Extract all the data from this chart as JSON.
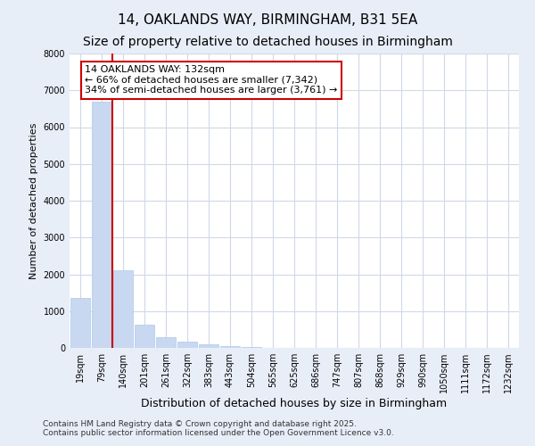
{
  "title": "14, OAKLANDS WAY, BIRMINGHAM, B31 5EA",
  "subtitle": "Size of property relative to detached houses in Birmingham",
  "xlabel": "Distribution of detached houses by size in Birmingham",
  "ylabel": "Number of detached properties",
  "categories": [
    "19sqm",
    "79sqm",
    "140sqm",
    "201sqm",
    "261sqm",
    "322sqm",
    "383sqm",
    "443sqm",
    "504sqm",
    "565sqm",
    "625sqm",
    "686sqm",
    "747sqm",
    "807sqm",
    "868sqm",
    "929sqm",
    "990sqm",
    "1050sqm",
    "1111sqm",
    "1172sqm",
    "1232sqm"
  ],
  "values": [
    1350,
    6700,
    2100,
    630,
    300,
    170,
    100,
    50,
    20,
    5,
    2,
    1,
    0,
    0,
    0,
    0,
    0,
    0,
    0,
    0,
    0
  ],
  "bar_color": "#c8d8f0",
  "bar_edge_color": "#b0c8e8",
  "vline_color": "#cc0000",
  "vline_index": 2,
  "ylim": [
    0,
    8000
  ],
  "yticks": [
    0,
    1000,
    2000,
    3000,
    4000,
    5000,
    6000,
    7000,
    8000
  ],
  "annotation_text": "14 OAKLANDS WAY: 132sqm\n← 66% of detached houses are smaller (7,342)\n34% of semi-detached houses are larger (3,761) →",
  "annotation_box_facecolor": "white",
  "annotation_box_edgecolor": "#cc0000",
  "footnote1": "Contains HM Land Registry data © Crown copyright and database right 2025.",
  "footnote2": "Contains public sector information licensed under the Open Government Licence v3.0.",
  "plot_bg_color": "#ffffff",
  "fig_bg_color": "#e8eef8",
  "grid_color": "#d0d8e8",
  "title_fontsize": 11,
  "subtitle_fontsize": 10,
  "ylabel_fontsize": 8,
  "xlabel_fontsize": 9,
  "tick_fontsize": 7,
  "footnote_fontsize": 6.5,
  "annotation_fontsize": 8
}
